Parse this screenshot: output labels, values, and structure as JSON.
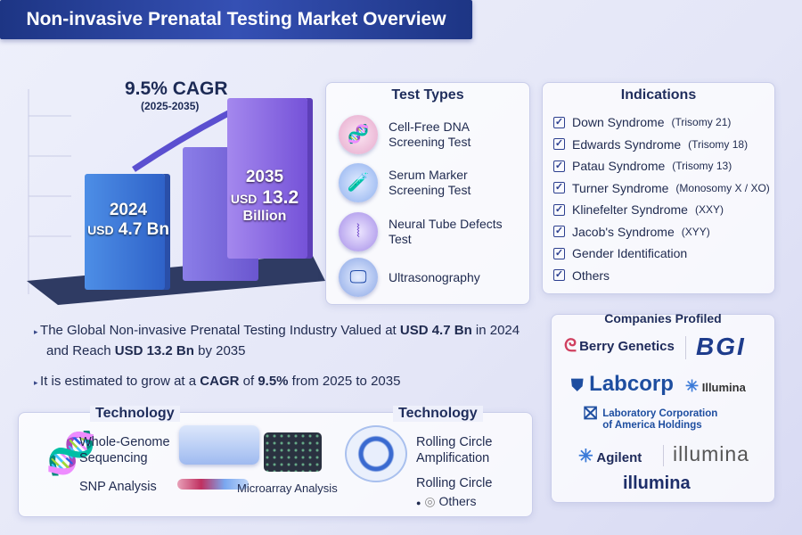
{
  "title": "Non-invasive Prenatal Testing Market Overview",
  "growth": {
    "cagr": "9.5% CAGR",
    "period": "(2025-2035)"
  },
  "chart_data": {
    "type": "bar",
    "categories": [
      "2024",
      "2035"
    ],
    "values": [
      4.7,
      13.2
    ],
    "unit": "USD Bn",
    "labels": [
      {
        "year": "2024",
        "currency": "USD",
        "value": "4.7 Bn"
      },
      {
        "year": "2035",
        "currency": "USD",
        "value": "13.2",
        "suffix": "Billion"
      }
    ]
  },
  "test_types": {
    "heading": "Test Types",
    "items": [
      {
        "label1": "Cell-Free DNA",
        "label2": "Screening Test",
        "icon": "dna-icon"
      },
      {
        "label1": "Serum Marker",
        "label2": "Screening Test",
        "icon": "test-tubes-icon"
      },
      {
        "label1": "Neural Tube Defects",
        "label2": "Test",
        "icon": "spine-icon"
      },
      {
        "label1": "Ultrasonography",
        "label2": "",
        "icon": "ultrasound-monitor-icon"
      }
    ]
  },
  "indications": {
    "heading": "Indications",
    "items": [
      {
        "name": "Down Syndrome",
        "note": "(Trisomy 21)"
      },
      {
        "name": "Edwards Syndrome",
        "note": "(Trisomy 18)"
      },
      {
        "name": "Patau Syndrome",
        "note": "(Trisomy 13)"
      },
      {
        "name": "Turner Syndrome",
        "note": "(Monosomy X / XO)"
      },
      {
        "name": "Klinefelter Syndrome",
        "note": "(XXY)"
      },
      {
        "name": "Jacob's Syndrome",
        "note": "(XYY)"
      },
      {
        "name": "Gender Identification",
        "note": ""
      },
      {
        "name": "Others",
        "note": ""
      }
    ]
  },
  "summary": {
    "line1_a": "The Global Non-invasive Prenatal Testing Industry Valued at ",
    "line1_b": "USD 4.7 Bn",
    "line1_c": " in 2024",
    "line2_a": "and Reach ",
    "line2_b": "USD 13.2 Bn",
    "line2_c": " by 2035",
    "line3_a": "It is estimated to grow at a ",
    "line3_b": "CAGR",
    "line3_c": " of ",
    "line3_d": "9.5%",
    "line3_e": " from 2025 to 2035"
  },
  "technology": {
    "heading_left": "Technology",
    "heading_right": "Technology",
    "wgs1": "Whole-Genome",
    "wgs2": "Sequencing",
    "snp": "SNP Analysis",
    "microarray": "Microarray Analysis",
    "rca1": "Rolling Circle",
    "rca2": "Amplification",
    "rc": "Rolling Circle",
    "others": "Others"
  },
  "companies": {
    "heading": "Companies Profiled",
    "items": [
      "Berry Genetics",
      "BGI",
      "Labcorp",
      "Illumina",
      "Laboratory Corporation",
      "of America Holdings",
      "Agilent",
      "illumina",
      "illumina"
    ]
  }
}
